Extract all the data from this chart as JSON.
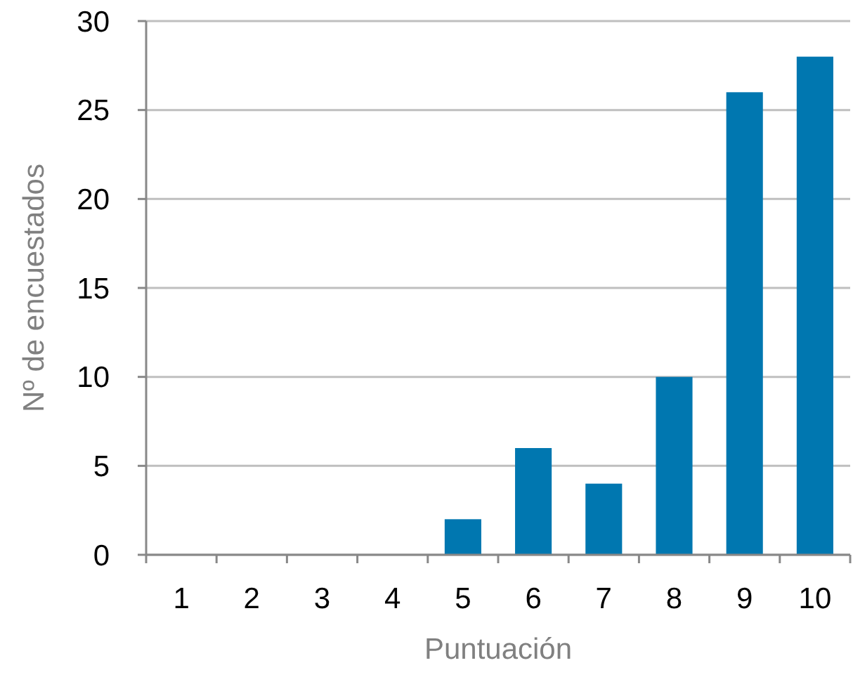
{
  "chart_data": {
    "type": "bar",
    "xlabel": "Puntuación",
    "ylabel": "Nº de encuestados",
    "categories": [
      "1",
      "2",
      "3",
      "4",
      "5",
      "6",
      "7",
      "8",
      "9",
      "10"
    ],
    "values": [
      0,
      0,
      0,
      0,
      2,
      6,
      4,
      10,
      26,
      28
    ],
    "color": "#0077b0",
    "ylim": [
      0,
      30
    ],
    "yticks": [
      0,
      5,
      10,
      15,
      20,
      25,
      30
    ],
    "grid": "y"
  }
}
